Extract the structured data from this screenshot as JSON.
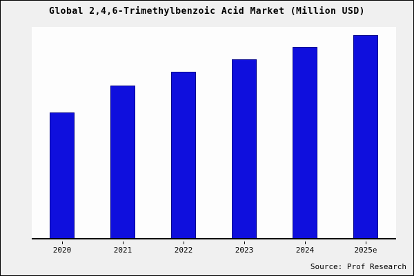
{
  "title": "Global 2,4,6-Trimethylbenzoic Acid Market (Million USD)",
  "source": "Source: Prof Research",
  "colors": {
    "bar_fill": "#0f0fdd",
    "bar_border": "#00008b",
    "background": "#f0f0f0",
    "axis": "#000000"
  },
  "chart_data": {
    "type": "bar",
    "title": "Global 2,4,6-Trimethylbenzoic Acid Market (Million USD)",
    "categories": [
      "2020",
      "2021",
      "2022",
      "2023",
      "2024",
      "2025e"
    ],
    "values": [
      62,
      75,
      82,
      88,
      94,
      100
    ],
    "xlabel": "",
    "ylabel": "",
    "ylim": [
      0,
      104
    ],
    "grid": false,
    "legend_position": "none",
    "bar_color": "#0f0fdd",
    "bar_border_color": "#00008b",
    "source_annotation": "Source: Prof Research"
  }
}
